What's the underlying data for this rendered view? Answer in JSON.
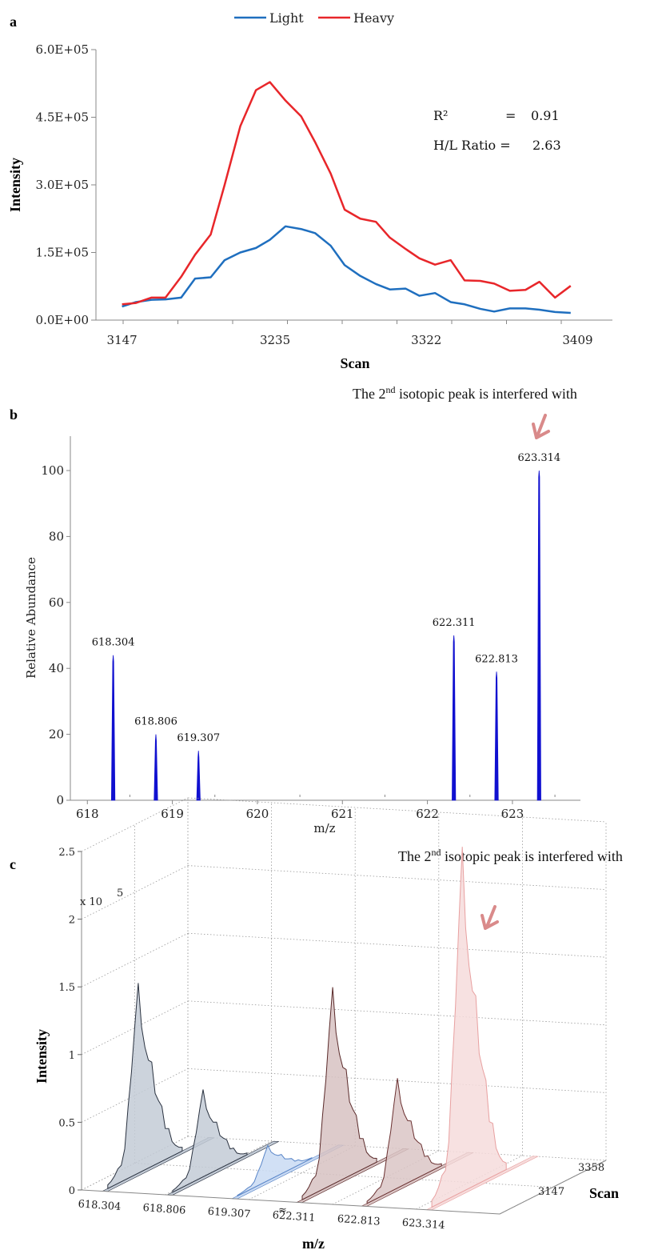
{
  "chart_data": [
    {
      "panel": "a",
      "type": "line",
      "xlabel": "Scan",
      "ylabel": "Intensity",
      "ylim": [
        0,
        600000
      ],
      "xtick_labels": [
        "3147",
        "3235",
        "3322",
        "3409"
      ],
      "xtick_values": [
        3147,
        3235,
        3322,
        3409
      ],
      "ytick_labels": [
        "0.0E+00",
        "1.5E+05",
        "3.0E+05",
        "4.5E+05",
        "6.0E+05"
      ],
      "ytick_values": [
        0,
        150000,
        300000,
        450000,
        600000
      ],
      "legend": [
        "Light",
        "Heavy"
      ],
      "legend_position": "top-center",
      "annotations": {
        "r2_label": "R²",
        "r2_eq": "=",
        "r2_value": "0.91",
        "ratio_label": "H/L Ratio =",
        "ratio_value": "2.63"
      },
      "x": [
        3147,
        3155,
        3164,
        3172,
        3181,
        3189,
        3198,
        3206,
        3215,
        3224,
        3232,
        3241,
        3250,
        3258,
        3267,
        3275,
        3284,
        3293,
        3301,
        3310,
        3318,
        3327,
        3336,
        3344,
        3353,
        3361,
        3370,
        3379,
        3387,
        3396,
        3405
      ],
      "series": [
        {
          "name": "Light",
          "color": "#1f6fbf",
          "values": [
            30000,
            40000,
            45000,
            46000,
            50000,
            92000,
            95000,
            133000,
            150000,
            160000,
            178000,
            208000,
            202000,
            193000,
            165000,
            122000,
            98000,
            80000,
            68000,
            70000,
            54000,
            60000,
            40000,
            35000,
            25000,
            19000,
            26000,
            26000,
            23000,
            18000,
            16000
          ]
        },
        {
          "name": "Heavy",
          "color": "#e8262a",
          "values": [
            35000,
            38000,
            50000,
            50000,
            96000,
            145000,
            190000,
            300000,
            430000,
            510000,
            528000,
            487000,
            452000,
            395000,
            325000,
            245000,
            225000,
            218000,
            183000,
            158000,
            137000,
            123000,
            133000,
            88000,
            87000,
            81000,
            65000,
            67000,
            85000,
            50000,
            76000
          ]
        }
      ]
    },
    {
      "panel": "b",
      "type": "bar",
      "title": "The 2nd isotopic peak is interfered with",
      "xlabel": "m/z",
      "ylabel": "Relative Abundance",
      "xlim": [
        617.8,
        623.8
      ],
      "ylim": [
        0,
        110
      ],
      "xtick_labels": [
        "618",
        "619",
        "620",
        "621",
        "622",
        "623"
      ],
      "xtick_values": [
        618,
        619,
        620,
        621,
        622,
        623
      ],
      "ytick_labels": [
        "0",
        "20",
        "40",
        "60",
        "80",
        "100"
      ],
      "ytick_values": [
        0,
        20,
        40,
        60,
        80,
        100
      ],
      "color": "#1010d0",
      "peaks": [
        {
          "mz": 618.304,
          "label": "618.304",
          "value": 44
        },
        {
          "mz": 618.806,
          "label": "618.806",
          "value": 20
        },
        {
          "mz": 619.307,
          "label": "619.307",
          "value": 15
        },
        {
          "mz": 622.311,
          "label": "622.311",
          "value": 50
        },
        {
          "mz": 622.813,
          "label": "622.813",
          "value": 39
        },
        {
          "mz": 623.314,
          "label": "623.314",
          "value": 100
        }
      ],
      "arrow_target": "623.314",
      "arrow_color": "#d98a8a"
    },
    {
      "panel": "c",
      "type": "area",
      "title": "The 2nd isotopic peak is interfered with",
      "xlabel": "m/z",
      "ylabel": "Intensity",
      "zlabel": "Scan",
      "y_exponent_label": "x 10",
      "y_exponent_power": "5",
      "ylim": [
        0,
        2.5
      ],
      "ytick_labels": [
        "0",
        "0.5",
        "1",
        "1.5",
        "2",
        "2.5"
      ],
      "ytick_values": [
        0,
        0.5,
        1,
        1.5,
        2,
        2.5
      ],
      "scan_tick_labels": [
        "3147",
        "3358"
      ],
      "break_mark": "≈",
      "arrow_color": "#d98a8a",
      "traces": [
        {
          "label": "618.304",
          "peak": 1.35,
          "fill": "#c3cbd6",
          "stroke": "#2a3240"
        },
        {
          "label": "618.806",
          "peak": 0.62,
          "fill": "#c3cbd6",
          "stroke": "#2a3240"
        },
        {
          "label": "619.307",
          "peak": 0.25,
          "fill": "#c9daf3",
          "stroke": "#5a86c8"
        },
        {
          "label": "622.311",
          "peak": 1.4,
          "fill": "#d7c2c2",
          "stroke": "#5a2a2a"
        },
        {
          "label": "622.813",
          "peak": 0.78,
          "fill": "#dbc6c6",
          "stroke": "#6a3030"
        },
        {
          "label": "623.314",
          "peak": 2.45,
          "fill": "#f6dcdc",
          "stroke": "#e8a0a0"
        }
      ]
    }
  ],
  "panels": {
    "a": "a",
    "b": "b",
    "c": "c"
  }
}
